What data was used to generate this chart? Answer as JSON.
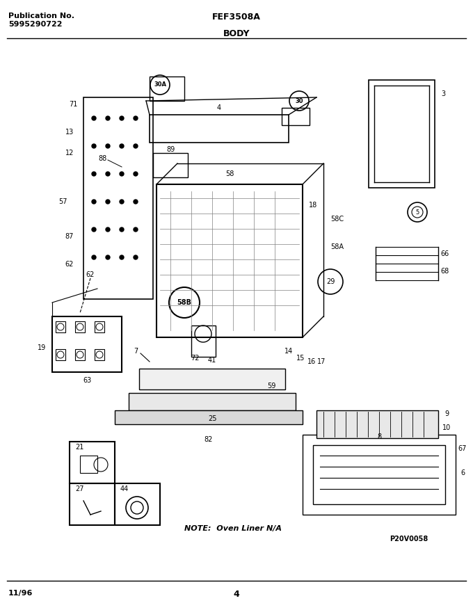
{
  "title_left_line1": "Publication No.",
  "title_left_line2": "5995290722",
  "title_center": "FEF3508A",
  "title_section": "BODY",
  "footer_left": "11/96",
  "footer_center": "4",
  "footer_right": "P20V0058",
  "note_text": "NOTE:  Oven Liner N/A",
  "bg_color": "#ffffff",
  "line_color": "#000000",
  "text_color": "#000000",
  "fig_width": 6.8,
  "fig_height": 8.67,
  "dpi": 100
}
